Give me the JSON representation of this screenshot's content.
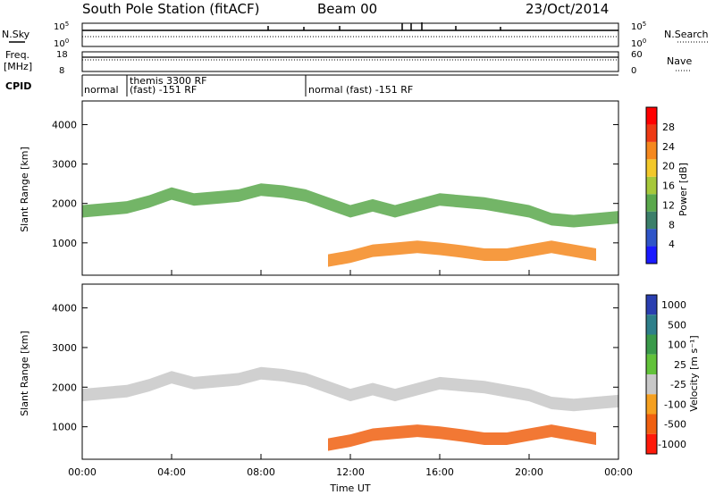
{
  "chart_data": [
    {
      "type": "line",
      "header": {
        "station": "South Pole Station (fitACF)",
        "beam": "Beam 00",
        "date": "23/Oct/2014"
      },
      "panel": "N.Sky / N.Search",
      "left_label": "N.Sky",
      "right_label": "N.Search",
      "left_ticks": [
        {
          "base": "10",
          "exp": "5"
        },
        {
          "base": "10",
          "exp": "0"
        }
      ],
      "right_ticks": [
        {
          "base": "10",
          "exp": "5"
        },
        {
          "base": "10",
          "exp": "0"
        }
      ],
      "scale": "log"
    },
    {
      "type": "line",
      "panel": "Freq / Nave",
      "left_label": "Freq. [MHz]",
      "right_label": "Nave",
      "left_ticks": [
        "18",
        "8"
      ],
      "right_ticks": [
        "60",
        "0"
      ],
      "ylim_freq": [
        8,
        18
      ],
      "ylim_nave": [
        0,
        60
      ]
    },
    {
      "type": "table",
      "panel": "CPID",
      "label": "CPID",
      "segments": [
        {
          "start": "00:00",
          "end": "02:00",
          "text": "normal"
        },
        {
          "start": "02:00",
          "end": "10:00",
          "line1": "themis 3300 RF",
          "line2": "(fast) -151 RF"
        },
        {
          "start": "10:00",
          "end": "24:00",
          "text": "normal (fast) -151 RF"
        }
      ]
    },
    {
      "type": "heatmap",
      "panel": "Power",
      "ylabel": "Slant Range [km]",
      "yticks": [
        "1000",
        "2000",
        "3000",
        "4000"
      ],
      "ylim": [
        180,
        4600
      ],
      "colorbar_label": "Power [dB]",
      "colorbar_ticks": [
        "4",
        "8",
        "12",
        "16",
        "20",
        "24",
        "28"
      ],
      "colorbar_colors": [
        "#1a1aff",
        "#2f55c8",
        "#3c7f6a",
        "#5aa84c",
        "#a6c83a",
        "#f2c82a",
        "#f5881e",
        "#ee3a14",
        "#ff0000"
      ],
      "bands": [
        {
          "label": "far-range echo band",
          "t": [
            0,
            2,
            3,
            4,
            5,
            6,
            7,
            8,
            9,
            10,
            11,
            12,
            13,
            14,
            15,
            16,
            17,
            18,
            19,
            20,
            21,
            22,
            23,
            24
          ],
          "r": [
            1800,
            1900,
            2050,
            2250,
            2100,
            2150,
            2200,
            2350,
            2300,
            2200,
            2000,
            1800,
            1950,
            1800,
            1950,
            2100,
            2050,
            2000,
            1900,
            1800,
            1600,
            1550,
            1600,
            1650
          ],
          "power_db": 14
        },
        {
          "label": "near-range echo band",
          "t": [
            11,
            12,
            13,
            14,
            15,
            16,
            17,
            18,
            19,
            20,
            21,
            22,
            23
          ],
          "r": [
            550,
            650,
            800,
            850,
            900,
            850,
            780,
            700,
            700,
            800,
            900,
            800,
            700
          ],
          "power_db": 26
        }
      ]
    },
    {
      "type": "heatmap",
      "panel": "Velocity",
      "ylabel": "Slant Range [km]",
      "xlabel": "Time UT",
      "xticks": [
        "00:00",
        "04:00",
        "08:00",
        "12:00",
        "16:00",
        "20:00",
        "00:00"
      ],
      "yticks": [
        "1000",
        "2000",
        "3000",
        "4000"
      ],
      "ylim": [
        180,
        4600
      ],
      "colorbar_label": "Velocity [m s⁻¹]",
      "colorbar_ticks": [
        "1000",
        "500",
        "100",
        "25",
        "-25",
        "-100",
        "-500",
        "-1000"
      ],
      "colorbar_colors": [
        "#2a3fb0",
        "#2e7f8a",
        "#3a9a4a",
        "#62c23a",
        "#c8c8c8",
        "#f5a020",
        "#f06010",
        "#ff1a0a"
      ],
      "bands": [
        {
          "label": "ground scatter band",
          "t": [
            0,
            2,
            3,
            4,
            5,
            6,
            7,
            8,
            9,
            10,
            11,
            12,
            13,
            14,
            15,
            16,
            17,
            18,
            19,
            20,
            21,
            22,
            23,
            24
          ],
          "r": [
            1800,
            1900,
            2050,
            2250,
            2100,
            2150,
            2200,
            2350,
            2300,
            2200,
            2000,
            1800,
            1950,
            1800,
            1950,
            2100,
            2050,
            2000,
            1900,
            1800,
            1600,
            1550,
            1600,
            1650
          ],
          "velocity": 0
        },
        {
          "label": "near-range flow band",
          "t": [
            11,
            12,
            13,
            14,
            15,
            16,
            17,
            18,
            19,
            20,
            21,
            22,
            23
          ],
          "r": [
            550,
            650,
            800,
            850,
            900,
            850,
            780,
            700,
            700,
            800,
            900,
            800,
            700
          ],
          "velocity": -300
        }
      ]
    }
  ]
}
